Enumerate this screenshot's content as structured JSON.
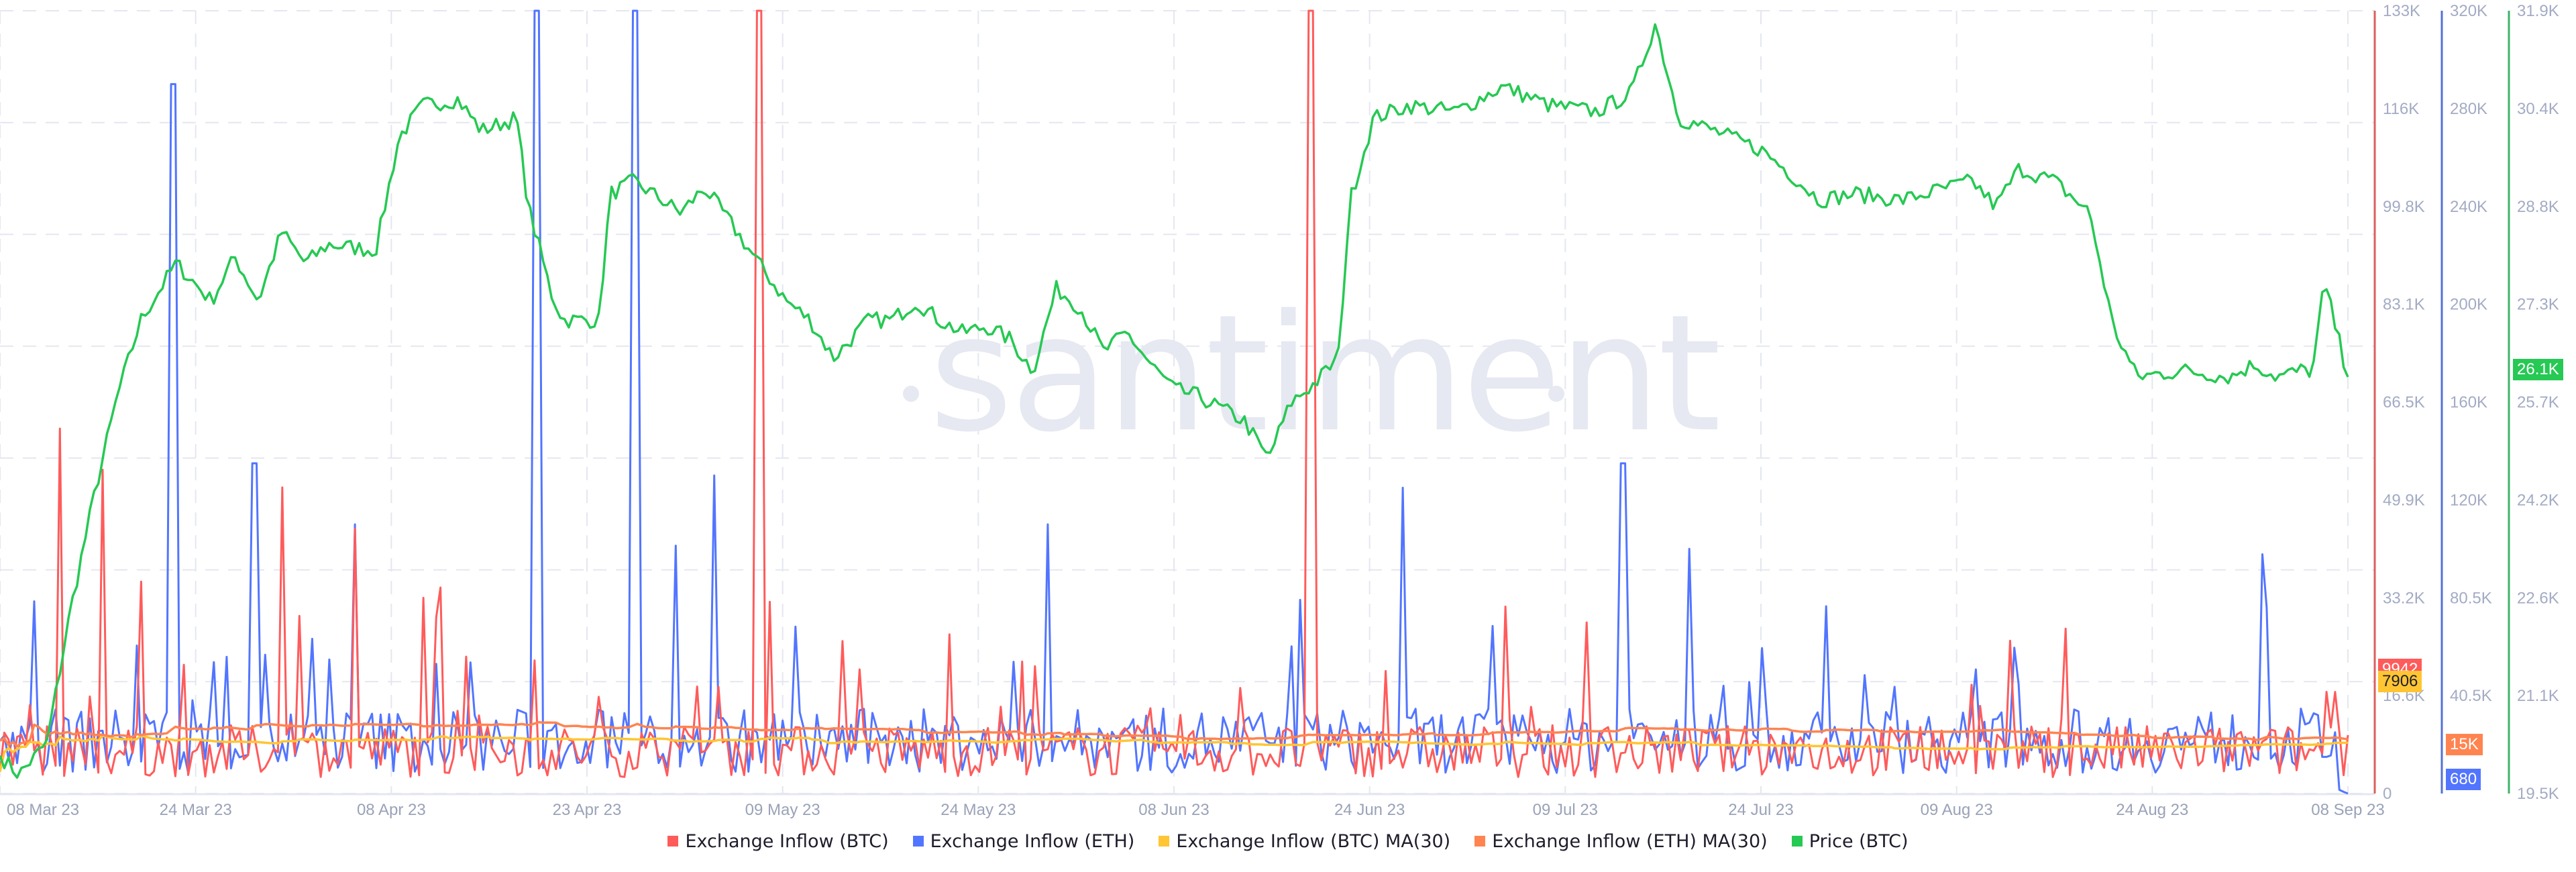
{
  "watermark": "santiment",
  "colors": {
    "btc_inflow": "#ff5b5b",
    "eth_inflow": "#5275ff",
    "btc_ma": "#ffc532",
    "eth_ma": "#ff8450",
    "price": "#26c953",
    "grid": "#e4e7f0",
    "axis_label": "#a3abc4",
    "red_axis": "#d9605f",
    "blue_axis": "#5371d6",
    "green_axis": "#3fb26a"
  },
  "legend": [
    {
      "label": "Exchange Inflow (BTC)",
      "color": "#ff5b5b"
    },
    {
      "label": "Exchange Inflow (ETH)",
      "color": "#5275ff"
    },
    {
      "label": "Exchange Inflow (BTC) MA(30)",
      "color": "#ffc532"
    },
    {
      "label": "Exchange Inflow (ETH) MA(30)",
      "color": "#ff8450"
    },
    {
      "label": "Price (BTC)",
      "color": "#26c953"
    }
  ],
  "badges": {
    "btc_inflow": {
      "text": "9942",
      "color": "#ff5b5b",
      "text_color": "#ffffff"
    },
    "btc_ma": {
      "text": "7906",
      "color": "#ffc532",
      "text_color": "#1d1d2b"
    },
    "eth_ma": {
      "text": "15K",
      "color": "#ff8450",
      "text_color": "#ffffff"
    },
    "eth_inflow": {
      "text": "680",
      "color": "#5275ff",
      "text_color": "#ffffff"
    },
    "price": {
      "text": "26.1K",
      "color": "#26c953",
      "text_color": "#ffffff"
    }
  },
  "chart_data": {
    "type": "line",
    "title": "",
    "x_tick_labels": [
      "08 Mar 23",
      "24 Mar 23",
      "08 Apr 23",
      "23 Apr 23",
      "09 May 23",
      "24 May 23",
      "08 Jun 23",
      "24 Jun 23",
      "09 Jul 23",
      "24 Jul 23",
      "09 Aug 23",
      "24 Aug 23",
      "08 Sep 23"
    ],
    "x_range": [
      "2023-03-08",
      "2023-09-08"
    ],
    "grid": true,
    "legend_position": "bottom",
    "axes": [
      {
        "name": "Exchange Inflow (BTC)",
        "color": "#d9605f",
        "ticks": [
          "133K",
          "116K",
          "99.8K",
          "83.1K",
          "66.5K",
          "49.9K",
          "33.2K",
          "16.6K",
          "0"
        ],
        "range": [
          0,
          133000
        ]
      },
      {
        "name": "Exchange Inflow (ETH)",
        "color": "#5371d6",
        "ticks": [
          "320K",
          "280K",
          "240K",
          "200K",
          "160K",
          "120K",
          "80.5K",
          "40.5K"
        ],
        "range": [
          0,
          320000
        ]
      },
      {
        "name": "Price (BTC)",
        "color": "#3fb26a",
        "ticks": [
          "31.9K",
          "30.4K",
          "28.8K",
          "27.3K",
          "25.7K",
          "24.2K",
          "22.6K",
          "21.1K",
          "19.5K"
        ],
        "range": [
          19500,
          31900
        ]
      }
    ],
    "series": [
      {
        "name": "Price (BTC)",
        "axis": 2,
        "keypoints": [
          [
            0,
            20100
          ],
          [
            0.008,
            19800
          ],
          [
            0.02,
            20300
          ],
          [
            0.03,
            22400
          ],
          [
            0.04,
            24200
          ],
          [
            0.05,
            25800
          ],
          [
            0.06,
            27000
          ],
          [
            0.075,
            27900
          ],
          [
            0.09,
            27300
          ],
          [
            0.1,
            28000
          ],
          [
            0.11,
            27300
          ],
          [
            0.12,
            28400
          ],
          [
            0.13,
            27900
          ],
          [
            0.14,
            28200
          ],
          [
            0.16,
            28100
          ],
          [
            0.17,
            29900
          ],
          [
            0.18,
            30400
          ],
          [
            0.195,
            30500
          ],
          [
            0.205,
            30000
          ],
          [
            0.22,
            30200
          ],
          [
            0.225,
            28800
          ],
          [
            0.235,
            27400
          ],
          [
            0.24,
            27000
          ],
          [
            0.255,
            27000
          ],
          [
            0.26,
            29000
          ],
          [
            0.27,
            29200
          ],
          [
            0.29,
            28700
          ],
          [
            0.3,
            29100
          ],
          [
            0.31,
            28600
          ],
          [
            0.325,
            27800
          ],
          [
            0.335,
            27300
          ],
          [
            0.345,
            27000
          ],
          [
            0.355,
            26400
          ],
          [
            0.37,
            27000
          ],
          [
            0.38,
            27000
          ],
          [
            0.39,
            27300
          ],
          [
            0.4,
            27000
          ],
          [
            0.41,
            26800
          ],
          [
            0.42,
            26900
          ],
          [
            0.43,
            26700
          ],
          [
            0.44,
            26200
          ],
          [
            0.45,
            27500
          ],
          [
            0.46,
            27200
          ],
          [
            0.47,
            26500
          ],
          [
            0.48,
            26800
          ],
          [
            0.49,
            26300
          ],
          [
            0.5,
            25900
          ],
          [
            0.51,
            25800
          ],
          [
            0.52,
            25600
          ],
          [
            0.53,
            25400
          ],
          [
            0.54,
            24800
          ],
          [
            0.55,
            25700
          ],
          [
            0.56,
            26000
          ],
          [
            0.57,
            26400
          ],
          [
            0.575,
            28900
          ],
          [
            0.585,
            30200
          ],
          [
            0.6,
            30400
          ],
          [
            0.62,
            30300
          ],
          [
            0.64,
            30700
          ],
          [
            0.66,
            30400
          ],
          [
            0.68,
            30300
          ],
          [
            0.695,
            30600
          ],
          [
            0.705,
            31700
          ],
          [
            0.715,
            30200
          ],
          [
            0.73,
            30000
          ],
          [
            0.75,
            29700
          ],
          [
            0.76,
            29400
          ],
          [
            0.775,
            28900
          ],
          [
            0.79,
            29000
          ],
          [
            0.81,
            28900
          ],
          [
            0.83,
            29100
          ],
          [
            0.84,
            29200
          ],
          [
            0.85,
            28800
          ],
          [
            0.86,
            29400
          ],
          [
            0.875,
            29200
          ],
          [
            0.89,
            28700
          ],
          [
            0.9,
            26900
          ],
          [
            0.91,
            26100
          ],
          [
            0.93,
            26200
          ],
          [
            0.95,
            26100
          ],
          [
            0.96,
            26300
          ],
          [
            0.97,
            26100
          ],
          [
            0.98,
            26200
          ],
          [
            0.985,
            26200
          ],
          [
            0.99,
            27600
          ],
          [
            1.0,
            26100
          ]
        ],
        "last_value": 26100
      },
      {
        "name": "Exchange Inflow (BTC)",
        "axis": 0,
        "base": 8000,
        "last_value": 9942,
        "spikes": [
          [
            0.025,
            62000
          ],
          [
            0.043,
            55000
          ],
          [
            0.06,
            36000
          ],
          [
            0.12,
            52000
          ],
          [
            0.152,
            45000
          ],
          [
            0.187,
            35000
          ],
          [
            0.322,
            133000
          ],
          [
            0.558,
            133000
          ],
          [
            0.88,
            28000
          ]
        ]
      },
      {
        "name": "Exchange Inflow (ETH)",
        "axis": 1,
        "base": 24000,
        "last_value": 680,
        "spikes": [
          [
            0.073,
            290000
          ],
          [
            0.227,
            320000
          ],
          [
            0.269,
            320000
          ],
          [
            0.108,
            135000
          ],
          [
            0.152,
            110000
          ],
          [
            0.305,
            130000
          ],
          [
            0.597,
            125000
          ],
          [
            0.447,
            110000
          ],
          [
            0.69,
            135000
          ],
          [
            0.72,
            100000
          ]
        ]
      },
      {
        "name": "Exchange Inflow (BTC) MA(30)",
        "axis": 0,
        "last_value": 7906
      },
      {
        "name": "Exchange Inflow (ETH) MA(30)",
        "axis": 1,
        "last_value": 15000
      }
    ]
  }
}
